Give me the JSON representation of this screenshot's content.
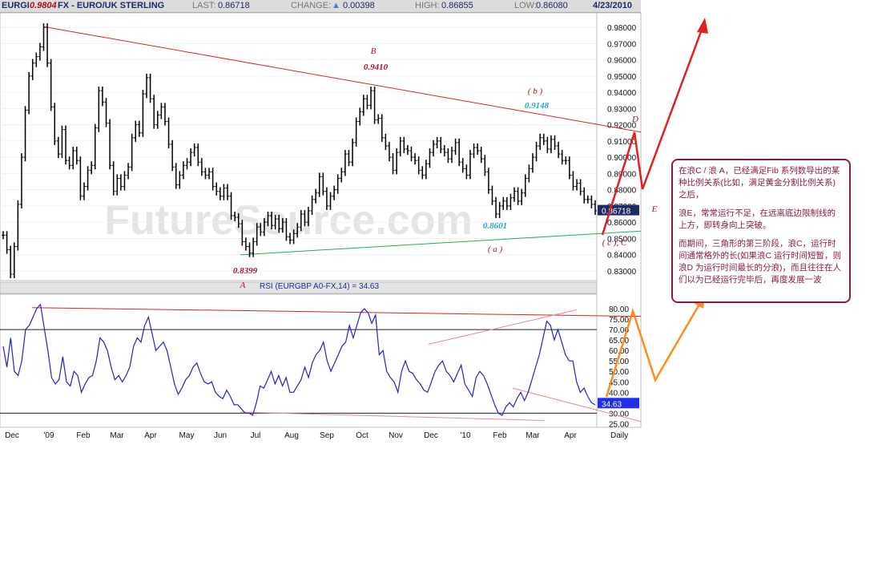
{
  "header": {
    "symbol": "EURGI",
    "overlay_value": "0.9804",
    "name": "FX - EURO/UK STERLING",
    "last_label": "LAST:",
    "last_value": "0.86718",
    "change_label": "CHANGE:",
    "change_value": "0.00398",
    "high_label": "HIGH:",
    "high_value": "0.86855",
    "low_label": "LOW:",
    "low_value": "0.86080",
    "date": "4/23/2010"
  },
  "rsi_title": "RSI (EURGBP A0-FX,14) = 34.63",
  "watermark": "FutureSource.com",
  "annotation_text": {
    "paragraphs": [
      "在浪C / 浪 A，已经满足Fib 系列数导出的某种比例关系(比如，满足黄金分割比例关系)之后，",
      "浪E，常常运行不足，在远离底边限制线的上方，即转身向上突破。",
      "而期间，三角形的第三阶段，浪C，运行时间通常格外的长(如果浪C 运行时间短暂，则浪D 为运行时间最长的分浪)，而且往往在人们以为已经运行完毕后，再度发展一波"
    ]
  },
  "colors": {
    "price": "#000000",
    "rsi": "#2222cc",
    "upper_trendline": "#dd2222",
    "lower_trendline": "#22aa55",
    "wave_label": "#b01020",
    "cyan_label": "#1ea7cc",
    "projection_red": "#e02020",
    "projection_orange": "#ff8c1a"
  },
  "chart_data": [
    {
      "type": "line",
      "subtype": "price-bars",
      "x_axis": [
        "Dec",
        "'09",
        "Feb",
        "Mar",
        "Apr",
        "May",
        "Jun",
        "Jul",
        "Aug",
        "Sep",
        "Oct",
        "Nov",
        "Dec",
        "'10",
        "Feb",
        "Mar",
        "Apr",
        "Daily"
      ],
      "y_ticks": [
        "0.98000",
        "0.97000",
        "0.96000",
        "0.95000",
        "0.94000",
        "0.93000",
        "0.92000",
        "0.91000",
        "0.90000",
        "0.89000",
        "0.88000",
        "0.87000",
        "0.86000",
        "0.85000",
        "0.84000",
        "0.83000"
      ],
      "ylim": [
        0.825,
        0.986
      ],
      "last_price": "0.86718",
      "series": [
        {
          "values": [
            0.852,
            0.843,
            0.828,
            0.845,
            0.871,
            0.9,
            0.929,
            0.95,
            0.958,
            0.962,
            0.968,
            0.98,
            0.958,
            0.931,
            0.91,
            0.902,
            0.917,
            0.898,
            0.895,
            0.904,
            0.898,
            0.876,
            0.882,
            0.892,
            0.895,
            0.918,
            0.941,
            0.934,
            0.921,
            0.895,
            0.879,
            0.887,
            0.882,
            0.889,
            0.894,
            0.912,
            0.92,
            0.915,
            0.939,
            0.949,
            0.936,
            0.92,
            0.926,
            0.931,
            0.922,
            0.908,
            0.894,
            0.883,
            0.889,
            0.895,
            0.897,
            0.903,
            0.906,
            0.897,
            0.891,
            0.889,
            0.891,
            0.882,
            0.879,
            0.876,
            0.881,
            0.876,
            0.864,
            0.863,
            0.859,
            0.848,
            0.845,
            0.841,
            0.848,
            0.857,
            0.854,
            0.86,
            0.864,
            0.858,
            0.862,
            0.856,
            0.86,
            0.851,
            0.849,
            0.853,
            0.857,
            0.865,
            0.86,
            0.867,
            0.874,
            0.878,
            0.888,
            0.879,
            0.87,
            0.876,
            0.88,
            0.887,
            0.891,
            0.902,
            0.897,
            0.909,
            0.922,
            0.928,
            0.936,
            0.932,
            0.941,
            0.923,
            0.924,
            0.912,
            0.907,
            0.9,
            0.892,
            0.903,
            0.91,
            0.905,
            0.904,
            0.9,
            0.898,
            0.892,
            0.889,
            0.896,
            0.903,
            0.908,
            0.91,
            0.905,
            0.903,
            0.899,
            0.904,
            0.909,
            0.897,
            0.893,
            0.889,
            0.902,
            0.906,
            0.904,
            0.899,
            0.891,
            0.88,
            0.873,
            0.865,
            0.87,
            0.873,
            0.87,
            0.875,
            0.879,
            0.873,
            0.878,
            0.887,
            0.893,
            0.9,
            0.907,
            0.912,
            0.91,
            0.905,
            0.911,
            0.907,
            0.902,
            0.898,
            0.898,
            0.889,
            0.882,
            0.884,
            0.879,
            0.874,
            0.874,
            0.871,
            0.867
          ]
        }
      ],
      "wave_labels": [
        {
          "text": "B",
          "date": "Oct 2009"
        },
        {
          "text": "0.9410",
          "date": "Oct 2009"
        },
        {
          "text": "( b )",
          "date": "Mar 2010"
        },
        {
          "text": "0.9148",
          "date": "Mar 2010"
        },
        {
          "text": "D",
          "date": "projection"
        },
        {
          "text": "0.9804",
          "date": "Jan 2009"
        },
        {
          "text": "0.8399",
          "date": "Jun 2009"
        },
        {
          "text": "A",
          "date": "Jun 2009"
        },
        {
          "text": "0.8601",
          "date": "Feb 2010"
        },
        {
          "text": "( a )",
          "date": "Feb 2010"
        },
        {
          "text": "( c ), C",
          "date": "Apr 2010"
        },
        {
          "text": "E",
          "date": "projection"
        }
      ]
    },
    {
      "type": "line",
      "subtype": "rsi",
      "y_ticks": [
        "80.00",
        "75.00",
        "70.00",
        "65.00",
        "60.00",
        "55.00",
        "50.00",
        "45.00",
        "40.00",
        "35.00",
        "30.00",
        "25.00"
      ],
      "ylim": [
        24,
        85
      ],
      "reference_levels": [
        70,
        30
      ],
      "last_value": "34.63",
      "series": [
        {
          "values": [
            62,
            52,
            66,
            50,
            48,
            55,
            70,
            72,
            76,
            80,
            82,
            71,
            60,
            47,
            44,
            46,
            57,
            45,
            43,
            50,
            48,
            40,
            44,
            47,
            48,
            55,
            66,
            64,
            60,
            52,
            46,
            48,
            45,
            48,
            52,
            62,
            66,
            64,
            72,
            76,
            68,
            60,
            62,
            64,
            60,
            52,
            44,
            39,
            42,
            46,
            48,
            52,
            54,
            49,
            45,
            44,
            45,
            40,
            38,
            37,
            41,
            38,
            34,
            34,
            32,
            30,
            30,
            29,
            35,
            43,
            42,
            46,
            50,
            44,
            48,
            43,
            47,
            40,
            40,
            43,
            46,
            52,
            47,
            54,
            58,
            60,
            64,
            55,
            50,
            54,
            58,
            62,
            64,
            72,
            66,
            72,
            78,
            80,
            78,
            73,
            77,
            58,
            60,
            50,
            47,
            45,
            40,
            50,
            55,
            50,
            49,
            46,
            44,
            41,
            40,
            45,
            50,
            53,
            55,
            50,
            48,
            45,
            49,
            53,
            44,
            41,
            38,
            47,
            50,
            48,
            44,
            39,
            34,
            30,
            29,
            33,
            35,
            33,
            37,
            40,
            36,
            40,
            46,
            52,
            58,
            66,
            74,
            72,
            65,
            70,
            64,
            58,
            55,
            55,
            45,
            40,
            42,
            38,
            35,
            34
          ]
        }
      ]
    }
  ]
}
